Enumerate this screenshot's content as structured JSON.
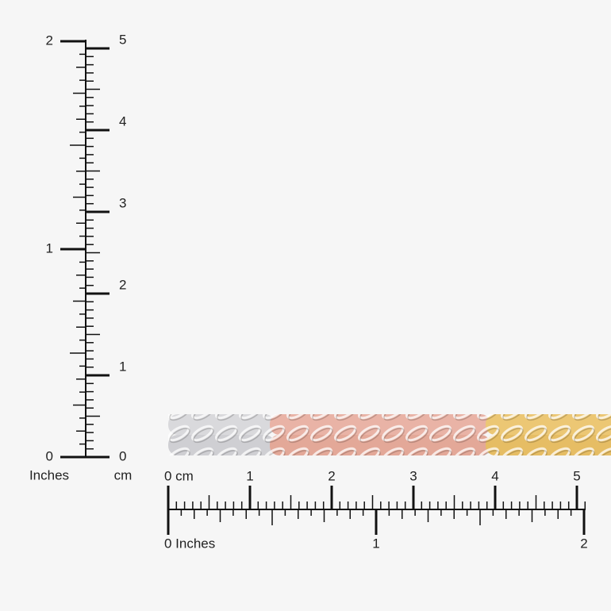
{
  "vertical_ruler": {
    "inch_labels": [
      0,
      1,
      2
    ],
    "inch_unit": "Inches",
    "cm_labels": [
      0,
      1,
      2,
      3,
      4,
      5
    ],
    "cm_unit": "cm"
  },
  "horizontal_ruler": {
    "cm_labels": [
      "0 cm",
      1,
      2,
      3,
      4,
      5
    ],
    "inch_labels": [
      "0 Inches",
      1,
      2
    ]
  }
}
